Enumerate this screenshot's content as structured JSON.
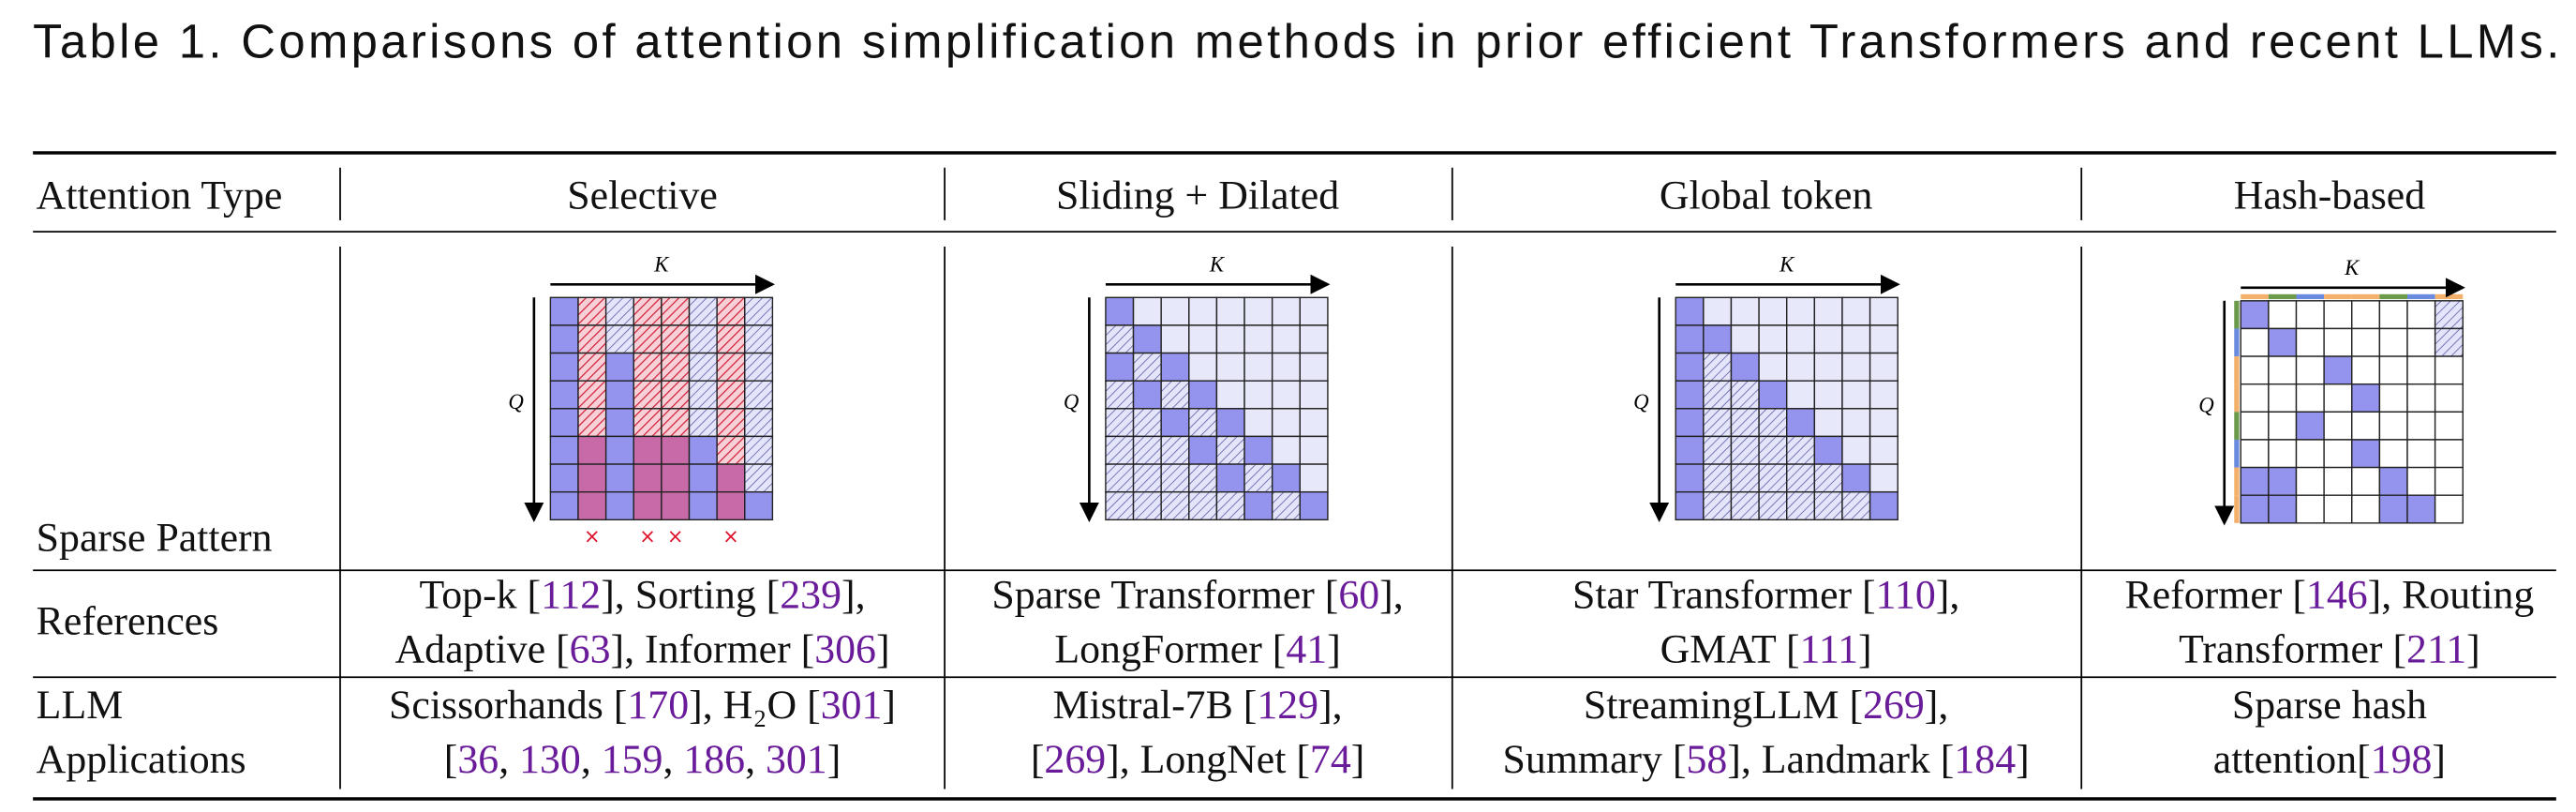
{
  "caption": "Table 1.  Comparisons of attention simplification methods in prior efficient Transformers and recent LLMs.",
  "table": {
    "header": [
      "Attention Type",
      "Selective",
      "Sliding + Dilated",
      "Global token",
      "Hash-based"
    ],
    "rows": [
      {
        "label": [
          "Sparse Pattern"
        ],
        "cells": [
          {
            "key_axis": "K",
            "query_axis": "Q",
            "dropped": [
              "×",
              "×",
              "×",
              "×"
            ]
          },
          {
            "key_axis": "K",
            "query_axis": "Q"
          },
          {
            "key_axis": "K",
            "query_axis": "Q"
          },
          {
            "key_axis": "K",
            "query_axis": "Q"
          }
        ]
      },
      {
        "label": [
          "References"
        ],
        "cells": [
          [
            [
              "Top-k [",
              "112",
              "], Sorting [",
              "239",
              "],"
            ],
            [
              "Adaptive [",
              "63",
              "], Informer [",
              "306",
              "]"
            ]
          ],
          [
            [
              "Sparse Transformer [",
              "60",
              "],"
            ],
            [
              "LongFormer [",
              "41",
              "]"
            ]
          ],
          [
            [
              "Star Transformer [",
              "110",
              "],"
            ],
            [
              "GMAT [",
              "111",
              "]"
            ]
          ],
          [
            [
              "Reformer [",
              "146",
              "], Routing"
            ],
            [
              "Transformer [",
              "211",
              "]"
            ]
          ]
        ]
      },
      {
        "label": [
          "LLM",
          "Applications"
        ],
        "cells": [
          [
            [
              "Scissorhands [",
              "170",
              "], H₂O [",
              "301",
              "]"
            ],
            [
              "[",
              "36",
              ", ",
              "130",
              ", ",
              "159",
              ", ",
              "186",
              ", ",
              "301",
              "]"
            ]
          ],
          [
            [
              "Mistral-7B [",
              "129",
              "],"
            ],
            [
              "[",
              "269",
              "], LongNet [",
              "74",
              "]"
            ]
          ],
          [
            [
              "StreamingLLM [",
              "269",
              "],"
            ],
            [
              "Summary [",
              "58",
              "], Landmark [",
              "184",
              "]"
            ]
          ],
          [
            [
              "Sparse hash"
            ],
            [
              "attention[",
              "198",
              "]"
            ]
          ]
        ]
      }
    ]
  }
}
